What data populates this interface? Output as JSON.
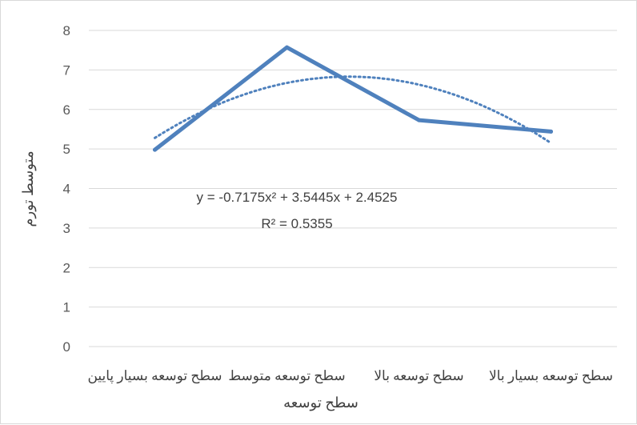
{
  "chart_data": {
    "type": "line",
    "categories": [
      "سطح توسعه بسیار پایین",
      "سطح توسعه متوسط",
      "سطح توسعه بالا",
      "سطح توسعه بسیار بالا"
    ],
    "series": [
      {
        "values": [
          4.98,
          7.57,
          5.73,
          5.44
        ],
        "color": "#4f81bd"
      }
    ],
    "trendline": {
      "kind": "polynomial-2",
      "coefficients": [
        -0.7175,
        3.5445,
        2.4525
      ],
      "equation": "y = -0.7175x² + 3.5445x + 2.4525",
      "r_squared": "R² = 0.5355",
      "style": "dotted",
      "color": "#4f81bd"
    },
    "xlabel": "سطح توسعه",
    "ylabel": "متوسط تورم",
    "ylim": [
      0,
      8
    ],
    "yticks": [
      "0",
      "1",
      "2",
      "3",
      "4",
      "5",
      "6",
      "7",
      "8"
    ],
    "grid": true
  }
}
